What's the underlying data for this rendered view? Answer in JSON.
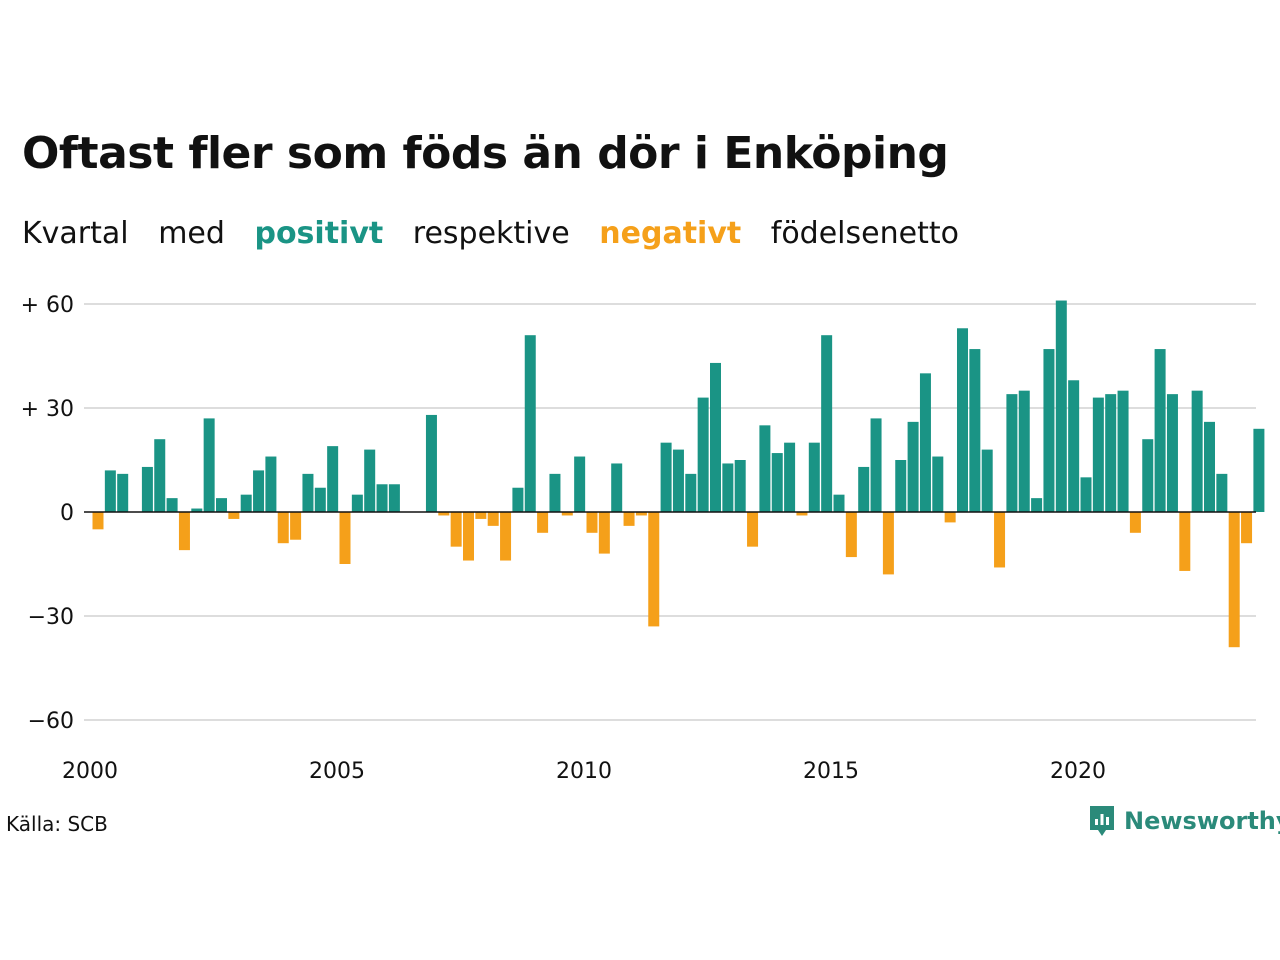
{
  "chart_data": {
    "type": "bar",
    "title": "Oftast fler som föds än dör i Enköping",
    "subtitle": {
      "parts": [
        "Kvartal",
        "med",
        "positivt",
        "respektive",
        "negativt",
        "födelsenetto"
      ]
    },
    "colors": {
      "positive": "#1a9485",
      "negative": "#f5a01a",
      "grid": "#dddddd",
      "zero": "#111111"
    },
    "ylim": [
      -60,
      60
    ],
    "y_ticks": [
      {
        "value": 60,
        "label": "+ 60"
      },
      {
        "value": 30,
        "label": "+ 30"
      },
      {
        "value": 0,
        "label": "0"
      },
      {
        "value": -30,
        "label": "−30"
      },
      {
        "value": -60,
        "label": "−60"
      }
    ],
    "x_ticks": [
      {
        "value": 2000,
        "label": "2000"
      },
      {
        "value": 2005,
        "label": "2005"
      },
      {
        "value": 2010,
        "label": "2010"
      },
      {
        "value": 2015,
        "label": "2015"
      },
      {
        "value": 2020,
        "label": "2020"
      }
    ],
    "grid": true,
    "x_start": 2000,
    "periods_per_year": 4,
    "values": [
      -5,
      12,
      11,
      0,
      13,
      21,
      4,
      -11,
      1,
      27,
      4,
      -2,
      5,
      12,
      16,
      -9,
      -8,
      11,
      7,
      19,
      -15,
      5,
      18,
      8,
      8,
      0,
      0,
      28,
      -1,
      -10,
      -14,
      -2,
      -4,
      -14,
      7,
      51,
      -6,
      11,
      -1,
      16,
      -6,
      -12,
      14,
      -4,
      -1,
      -33,
      20,
      18,
      11,
      33,
      43,
      14,
      15,
      -10,
      25,
      17,
      20,
      -1,
      20,
      51,
      5,
      -13,
      13,
      27,
      -18,
      15,
      26,
      40,
      16,
      -3,
      53,
      47,
      18,
      -16,
      34,
      35,
      4,
      47,
      61,
      38,
      10,
      33,
      34,
      35,
      -6,
      21,
      47,
      34,
      -17,
      35,
      26,
      11,
      -39,
      -9,
      24
    ]
  },
  "source": "Källa: SCB",
  "logo": {
    "text": "Newsworthy",
    "icon": "newsworthy-logo-icon"
  }
}
